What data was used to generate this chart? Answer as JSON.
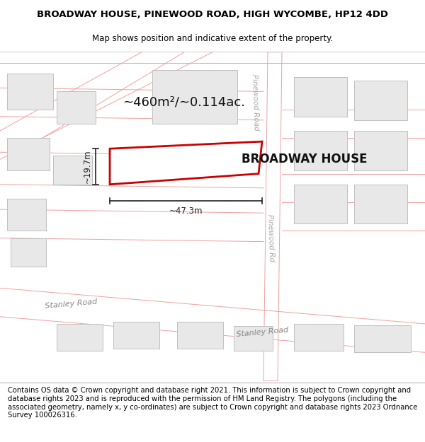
{
  "title_line1": "BROADWAY HOUSE, PINEWOOD ROAD, HIGH WYCOMBE, HP12 4DD",
  "title_line2": "Map shows position and indicative extent of the property.",
  "footer_text": "Contains OS data © Crown copyright and database right 2021. This information is subject to Crown copyright and database rights 2023 and is reproduced with the permission of HM Land Registry. The polygons (including the associated geometry, namely x, y co-ordinates) are subject to Crown copyright and database rights 2023 Ordnance Survey 100026316.",
  "property_label": "BROADWAY HOUSE",
  "area_label": "~460m²/~0.114ac.",
  "width_label": "~47.3m",
  "height_label": "~19.7m",
  "road_label_stanley1": "Stanley Road",
  "road_label_stanley2": "Stanley Road",
  "road_label_pinewood": "Pinewood Road",
  "map_bg": "#ffffff",
  "road_line_color": "#f0a0a0",
  "building_fill": "#e8e8e8",
  "building_outline": "#c0c0c0",
  "property_fill": "#ffffff",
  "property_outline": "#cc0000",
  "dim_color": "#222222",
  "title_fontsize": 9.5,
  "subtitle_fontsize": 8.5,
  "footer_fontsize": 7.2,
  "label_fontsize": 13,
  "prop_label_fontsize": 12,
  "dim_fontsize": 8.5,
  "road_fontsize": 8.0,
  "pinewood_fontsize": 7.5
}
